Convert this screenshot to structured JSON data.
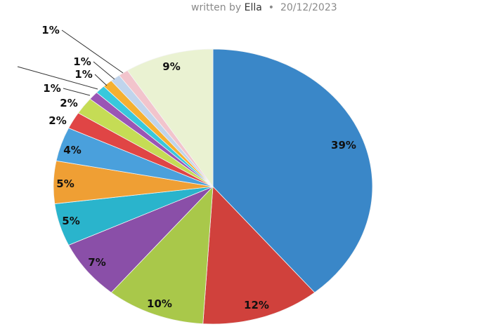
{
  "byline": {
    "prefix": "written by",
    "author": "Ella",
    "separator": "•",
    "date": "20/12/2023"
  },
  "chart_data": {
    "type": "pie",
    "title": "",
    "start": "top",
    "direction": "clockwise",
    "slices": [
      {
        "value": 39,
        "label": "39%",
        "color": "#3a87c8"
      },
      {
        "value": 12,
        "label": "12%",
        "color": "#d0413c"
      },
      {
        "value": 10,
        "label": "10%",
        "color": "#a9c84a"
      },
      {
        "value": 7,
        "label": "7%",
        "color": "#8a4fa8"
      },
      {
        "value": 5,
        "label": "5%",
        "color": "#2ab4cc"
      },
      {
        "value": 5,
        "label": "5%",
        "color": "#ef9f34"
      },
      {
        "value": 4,
        "label": "4%",
        "color": "#4aa0dc"
      },
      {
        "value": 2,
        "label": "2%",
        "color": "#e04545"
      },
      {
        "value": 2,
        "label": "2%",
        "color": "#c5dc55"
      },
      {
        "value": 1,
        "label": "1%",
        "color": "#9a55b5"
      },
      {
        "value": 1,
        "label": "",
        "color": "#38c8dc"
      },
      {
        "value": 1,
        "label": "1%",
        "color": "#f5b030"
      },
      {
        "value": 1,
        "label": "1%",
        "color": "#c0d4ec"
      },
      {
        "value": 1,
        "label": "1%",
        "color": "#f2c4cc"
      },
      {
        "value": 9,
        "label": "9%",
        "color": "#eaf2d2"
      }
    ]
  }
}
